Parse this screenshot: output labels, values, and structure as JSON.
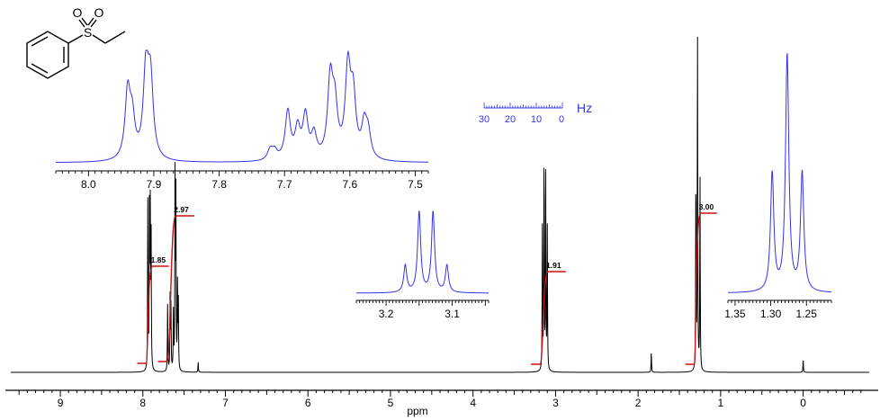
{
  "colors": {
    "spectrum": "#000000",
    "inset": "#3333ee",
    "integral": "#cc1111",
    "axis": "#000000"
  },
  "structure": {
    "name_icon": "ethyl-phenyl-sulfone-structure",
    "atom_S": "S",
    "atom_O1": "O",
    "atom_O2": "O"
  },
  "chart_data": {
    "type": "line",
    "title": "",
    "xlabel": "ppm",
    "ylabel": "",
    "xlim": [
      9.6,
      -0.8
    ],
    "x_reversed": true,
    "grid": false,
    "main_ticks": [
      "9",
      "8",
      "7",
      "6",
      "5",
      "4",
      "3",
      "2",
      "1",
      "0"
    ],
    "peaks": [
      {
        "shift": 7.94,
        "height": 0.5
      },
      {
        "shift": 7.92,
        "height": 0.53
      },
      {
        "shift": 7.91,
        "height": 0.45
      },
      {
        "shift": 7.9,
        "height": 0.4
      },
      {
        "shift": 7.7,
        "height": 0.2
      },
      {
        "shift": 7.67,
        "height": 0.22
      },
      {
        "shift": 7.66,
        "height": 0.19
      },
      {
        "shift": 7.63,
        "height": 0.17
      },
      {
        "shift": 7.61,
        "height": 0.58
      },
      {
        "shift": 7.6,
        "height": 0.52
      },
      {
        "shift": 7.58,
        "height": 0.25
      },
      {
        "shift": 7.57,
        "height": 0.2
      },
      {
        "shift": 7.33,
        "height": 0.03
      },
      {
        "shift": 3.16,
        "height": 0.42
      },
      {
        "shift": 3.14,
        "height": 0.62
      },
      {
        "shift": 3.12,
        "height": 0.62
      },
      {
        "shift": 3.1,
        "height": 0.42
      },
      {
        "shift": 1.84,
        "height": 0.06
      },
      {
        "shift": 1.3,
        "height": 0.58
      },
      {
        "shift": 1.28,
        "height": 1.0
      },
      {
        "shift": 1.25,
        "height": 0.58
      },
      {
        "shift": 0.0,
        "height": 0.04
      }
    ],
    "integrals": [
      {
        "label": "1.85",
        "from": 7.97,
        "to": 7.86
      },
      {
        "label": "2.97",
        "from": 7.72,
        "to": 7.55
      },
      {
        "label": "1.91",
        "from": 3.2,
        "to": 3.05
      },
      {
        "label": "3.00",
        "from": 1.33,
        "to": 1.22
      }
    ],
    "insets": [
      {
        "name": "aromatic",
        "xlim": [
          8.05,
          7.48
        ],
        "ticks": [
          "8.0",
          "7.9",
          "7.8",
          "7.7",
          "7.6",
          "7.5"
        ],
        "tick_values": [
          8.0,
          7.9,
          7.8,
          7.7,
          7.6,
          7.5
        ],
        "peaks": [
          {
            "shift": 7.94,
            "height": 0.62
          },
          {
            "shift": 7.933,
            "height": 0.35
          },
          {
            "shift": 7.912,
            "height": 0.82
          },
          {
            "shift": 7.905,
            "height": 0.7
          },
          {
            "shift": 7.722,
            "height": 0.1
          },
          {
            "shift": 7.715,
            "height": 0.08
          },
          {
            "shift": 7.695,
            "height": 0.45
          },
          {
            "shift": 7.68,
            "height": 0.28
          },
          {
            "shift": 7.668,
            "height": 0.4
          },
          {
            "shift": 7.655,
            "height": 0.22
          },
          {
            "shift": 7.63,
            "height": 0.72
          },
          {
            "shift": 7.623,
            "height": 0.45
          },
          {
            "shift": 7.603,
            "height": 0.82
          },
          {
            "shift": 7.595,
            "height": 0.55
          },
          {
            "shift": 7.578,
            "height": 0.3
          },
          {
            "shift": 7.572,
            "height": 0.22
          }
        ]
      },
      {
        "name": "ch2-quartet",
        "xlim": [
          3.245,
          3.045
        ],
        "ticks": [
          "3.2",
          "3.1"
        ],
        "tick_values": [
          3.2,
          3.1
        ],
        "peaks": [
          {
            "shift": 3.171,
            "height": 0.3
          },
          {
            "shift": 3.15,
            "height": 0.9
          },
          {
            "shift": 3.129,
            "height": 0.9
          },
          {
            "shift": 3.108,
            "height": 0.3
          }
        ]
      },
      {
        "name": "ch3-triplet",
        "xlim": [
          1.36,
          1.215
        ],
        "ticks": [
          "1.35",
          "1.30",
          "1.25"
        ],
        "tick_values": [
          1.35,
          1.3,
          1.25
        ],
        "peaks": [
          {
            "shift": 1.298,
            "height": 0.5
          },
          {
            "shift": 1.277,
            "height": 1.0
          },
          {
            "shift": 1.256,
            "height": 0.5
          }
        ]
      }
    ],
    "hz_scale": {
      "ticks": [
        "30",
        "20",
        "10",
        "0"
      ],
      "unit": "Hz"
    }
  }
}
